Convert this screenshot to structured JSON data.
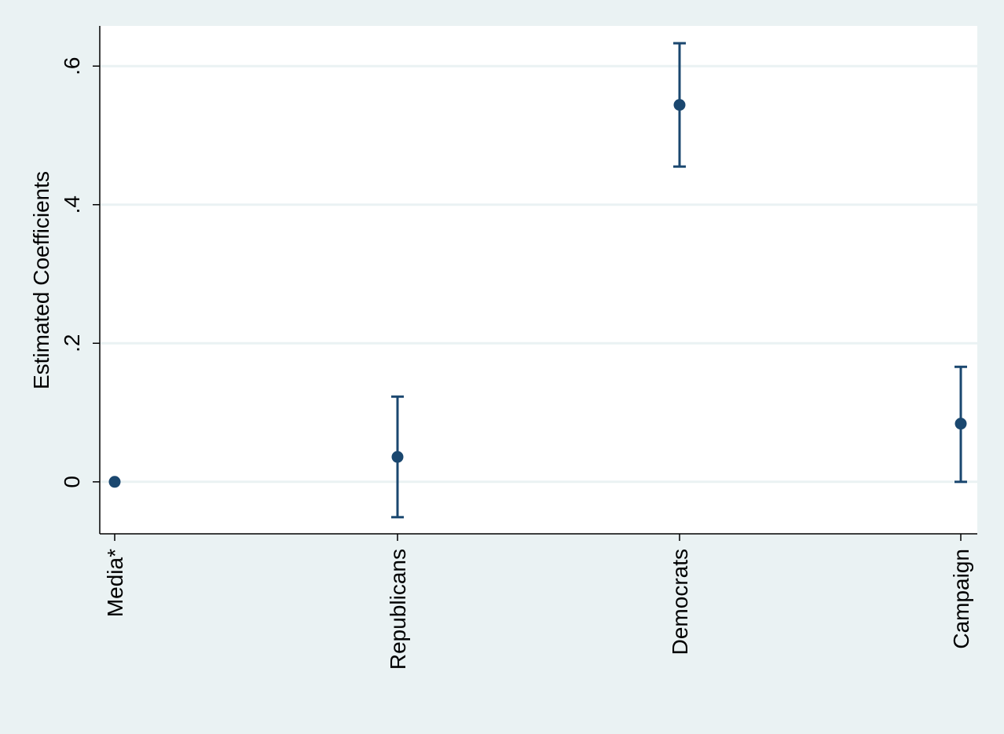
{
  "chart_data": {
    "type": "scatter",
    "title": "",
    "xlabel": "",
    "ylabel": "Estimated Coefficients",
    "categories": [
      "Media*",
      "Republicans",
      "Democrats",
      "Campaign"
    ],
    "estimates": [
      0.0,
      0.036,
      0.544,
      0.084
    ],
    "ci_lower": [
      0.0,
      -0.051,
      0.455,
      0.0
    ],
    "ci_upper": [
      0.0,
      0.123,
      0.633,
      0.166
    ],
    "ylim": [
      -0.075,
      0.658
    ],
    "yticks": [
      0,
      0.2,
      0.4,
      0.6
    ],
    "ytick_labels": [
      "0",
      ".2",
      ".4",
      ".6"
    ],
    "grid": true,
    "legend": "none",
    "colors": {
      "marker": "#1a476f",
      "grid": "#eaf2f3",
      "plot_background": "#ffffff",
      "outer_background": "#eaf2f3",
      "axis": "#000000"
    }
  }
}
